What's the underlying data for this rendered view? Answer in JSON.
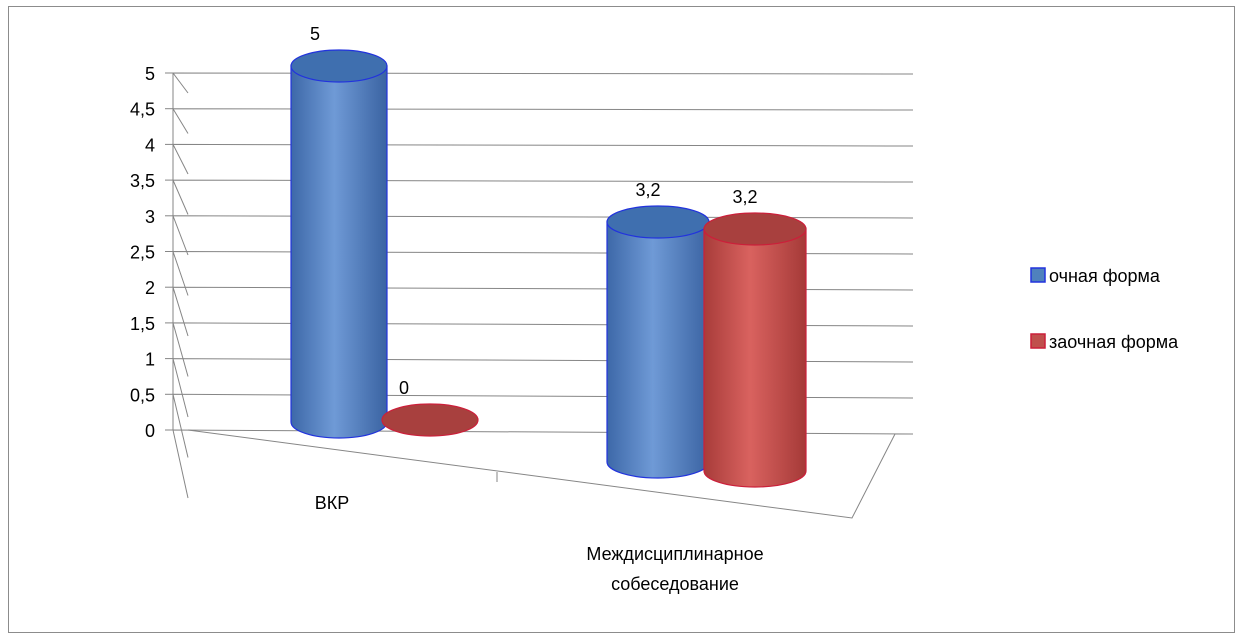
{
  "chart_data": {
    "type": "bar",
    "style": "3d-cylinder",
    "categories": [
      "ВКР",
      "Междисциплинарное собеседование"
    ],
    "series": [
      {
        "name": "очная форма",
        "values": [
          5,
          3.2
        ],
        "color": "#4f81bd"
      },
      {
        "name": "заочная форма",
        "values": [
          0,
          3.2
        ],
        "color": "#c0504d"
      }
    ],
    "data_labels": {
      "ВКР": [
        "5",
        "0"
      ],
      "Междисциплинарное собеседование": [
        "3,2",
        "3,2"
      ]
    },
    "y_ticks": [
      "0",
      "0,5",
      "1",
      "1,5",
      "2",
      "2,5",
      "3",
      "3,5",
      "4",
      "4,5",
      "5"
    ],
    "ylim": [
      0,
      5
    ],
    "grid": true,
    "legend": "right",
    "title": "",
    "xlabel": "",
    "ylabel": ""
  }
}
